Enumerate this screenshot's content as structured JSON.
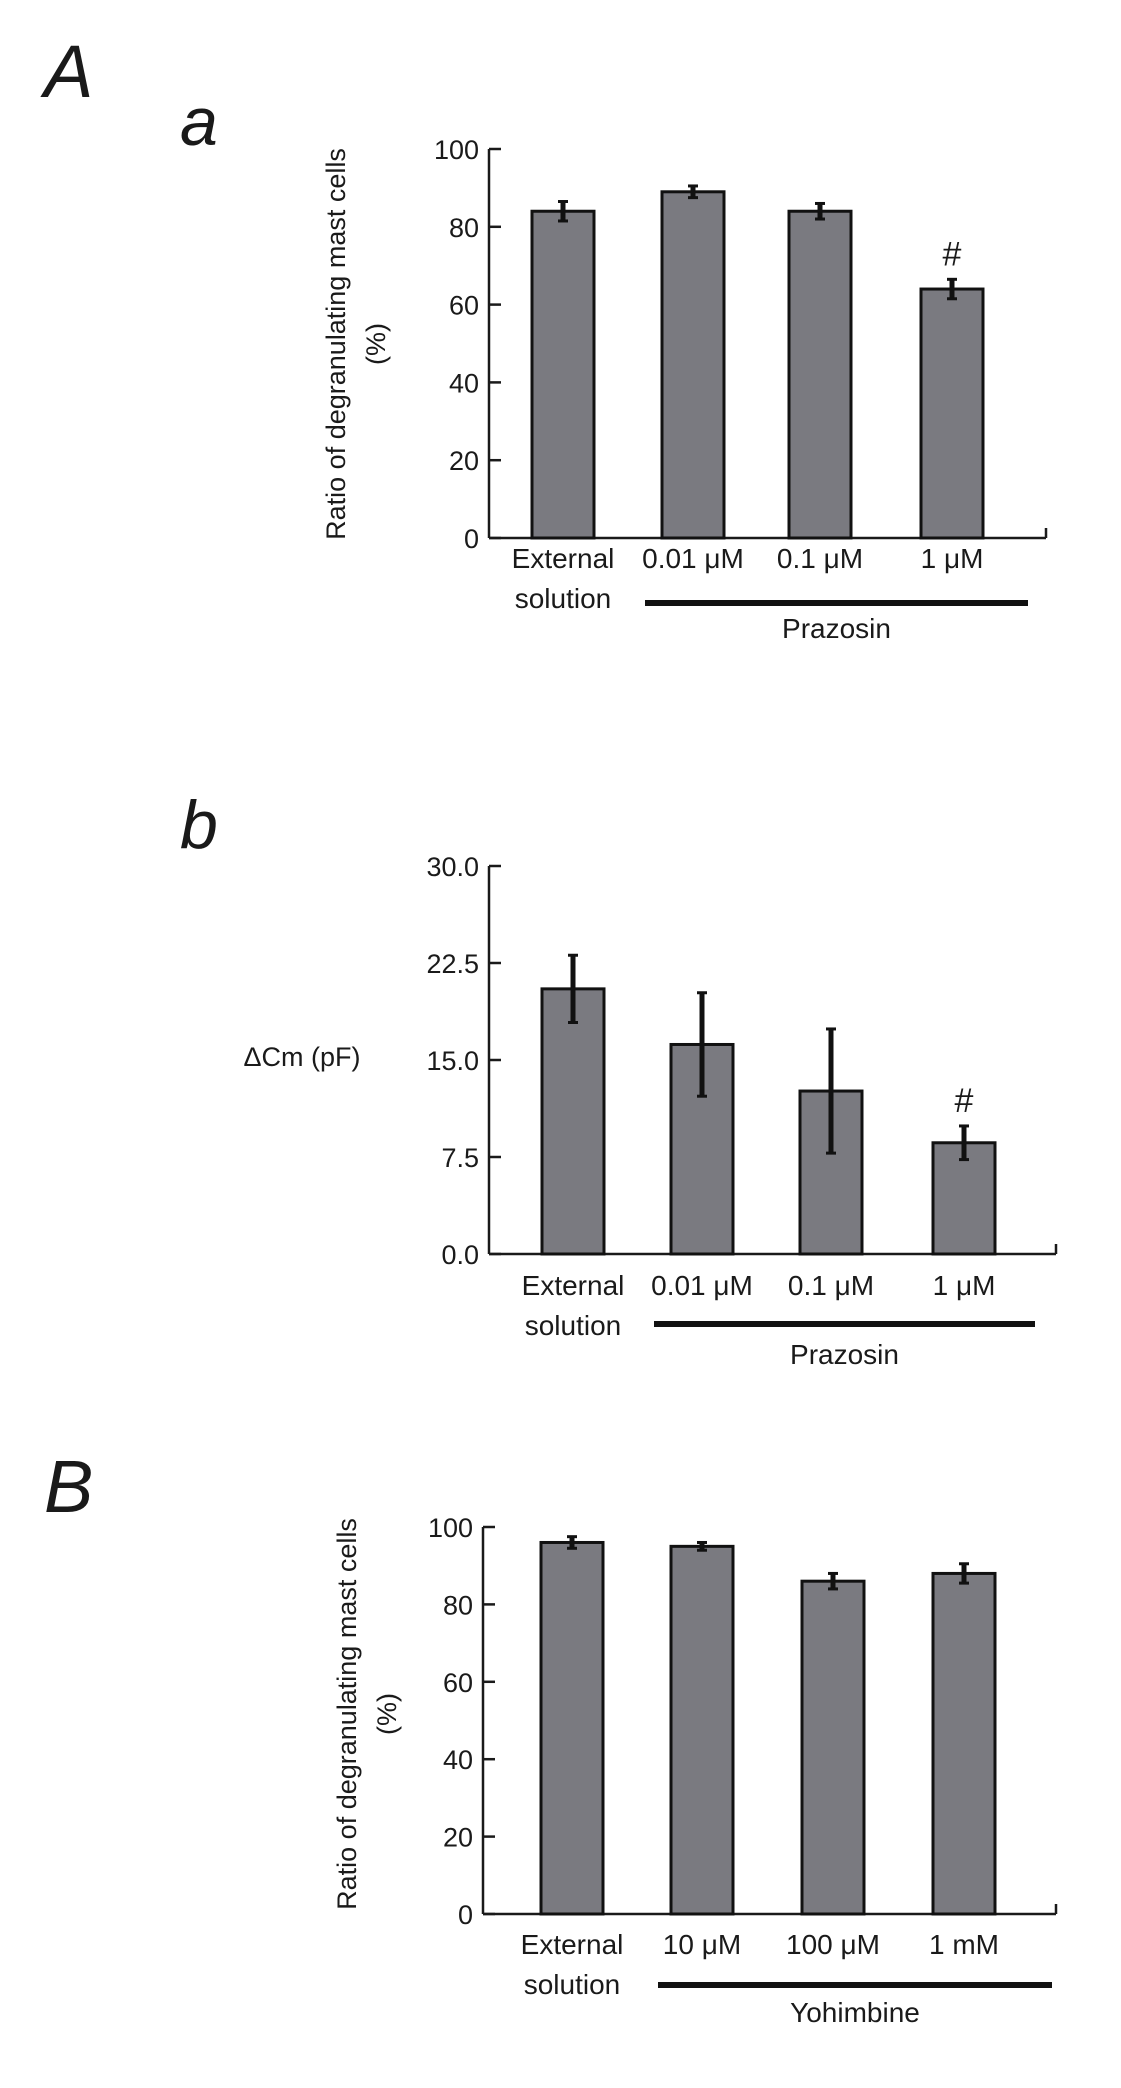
{
  "figure": {
    "letters": {
      "A": "A",
      "a": "a",
      "b": "b",
      "B": "B"
    }
  },
  "chart_data": [
    {
      "type": "bar",
      "panel": "a",
      "ylabel_lines": [
        "Ratio of degranulating mast cells",
        "(%)"
      ],
      "yticks": [
        "0",
        "20",
        "40",
        "60",
        "80",
        "100"
      ],
      "ylim": [
        0,
        100
      ],
      "categories": [
        [
          "External",
          "solution"
        ],
        [
          "0.01 μM"
        ],
        [
          "0.1 μM"
        ],
        [
          "1 μM"
        ]
      ],
      "values": [
        84,
        89,
        84,
        64
      ],
      "errors": [
        2.5,
        1.5,
        2.0,
        2.5
      ],
      "significance": [
        "",
        "",
        "",
        "#"
      ],
      "group_label": "Prazosin",
      "bar_color": "#7a7a80"
    },
    {
      "type": "bar",
      "panel": "b",
      "ylabel_lines": [
        "ΔCm (pF)"
      ],
      "yticks": [
        "0.0",
        "7.5",
        "15.0",
        "22.5",
        "30.0"
      ],
      "ylim": [
        0,
        30
      ],
      "categories": [
        [
          "External",
          "solution"
        ],
        [
          "0.01 μM"
        ],
        [
          "0.1 μM"
        ],
        [
          "1 μM"
        ]
      ],
      "values": [
        20.5,
        16.2,
        12.6,
        8.6
      ],
      "errors": [
        2.6,
        4.0,
        4.8,
        1.3
      ],
      "significance": [
        "",
        "",
        "",
        "#"
      ],
      "group_label": "Prazosin",
      "bar_color": "#7a7a80"
    },
    {
      "type": "bar",
      "panel": "B",
      "ylabel_lines": [
        "Ratio of degranulating mast cells",
        "(%)"
      ],
      "yticks": [
        "0",
        "20",
        "40",
        "60",
        "80",
        "100"
      ],
      "ylim": [
        0,
        100
      ],
      "categories": [
        [
          "External",
          "solution"
        ],
        [
          "10 μM"
        ],
        [
          "100 μM"
        ],
        [
          "1 mM"
        ]
      ],
      "values": [
        96,
        95,
        86,
        88
      ],
      "errors": [
        1.5,
        1.0,
        2.0,
        2.5
      ],
      "significance": [
        "",
        "",
        "",
        ""
      ],
      "group_label": "Yohimbine",
      "bar_color": "#7a7a80"
    }
  ]
}
